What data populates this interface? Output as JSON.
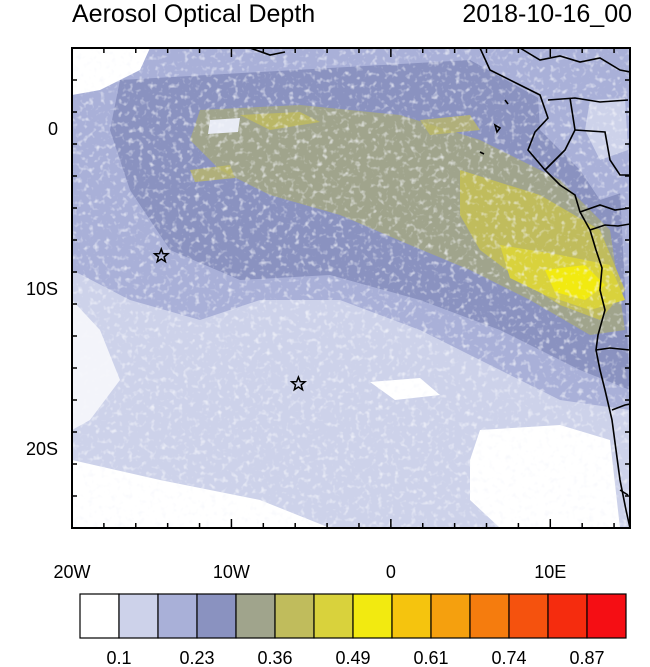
{
  "header": {
    "title": "Aerosol Optical Depth",
    "datetime": "2018-10-16_00"
  },
  "map": {
    "lon_range": [
      -20,
      15
    ],
    "lat_range": [
      -25,
      5
    ],
    "x_ticks": [
      {
        "lon": -20,
        "label": "20W"
      },
      {
        "lon": -10,
        "label": "10W"
      },
      {
        "lon": 0,
        "label": "0"
      },
      {
        "lon": 10,
        "label": "10E"
      }
    ],
    "y_ticks": [
      {
        "lat": 0,
        "label": "0"
      },
      {
        "lat": -10,
        "label": "10S"
      },
      {
        "lat": -20,
        "label": "20S"
      }
    ],
    "markers": [
      {
        "lon": -14.4,
        "lat": -8.0,
        "symbol": "star"
      },
      {
        "lon": -5.8,
        "lat": -16.0,
        "symbol": "star"
      }
    ]
  },
  "colorbar": {
    "colors": [
      "#ffffff",
      "#cdd2ea",
      "#a9b0d8",
      "#8a92c0",
      "#a0a48c",
      "#c0bc5c",
      "#d9d23c",
      "#f2ea10",
      "#f5c40e",
      "#f5a00e",
      "#f57c0e",
      "#f5520e",
      "#f52c0e",
      "#f50e14"
    ],
    "labels": [
      "0.1",
      "0.23",
      "0.36",
      "0.49",
      "0.61",
      "0.74",
      "0.87"
    ]
  }
}
